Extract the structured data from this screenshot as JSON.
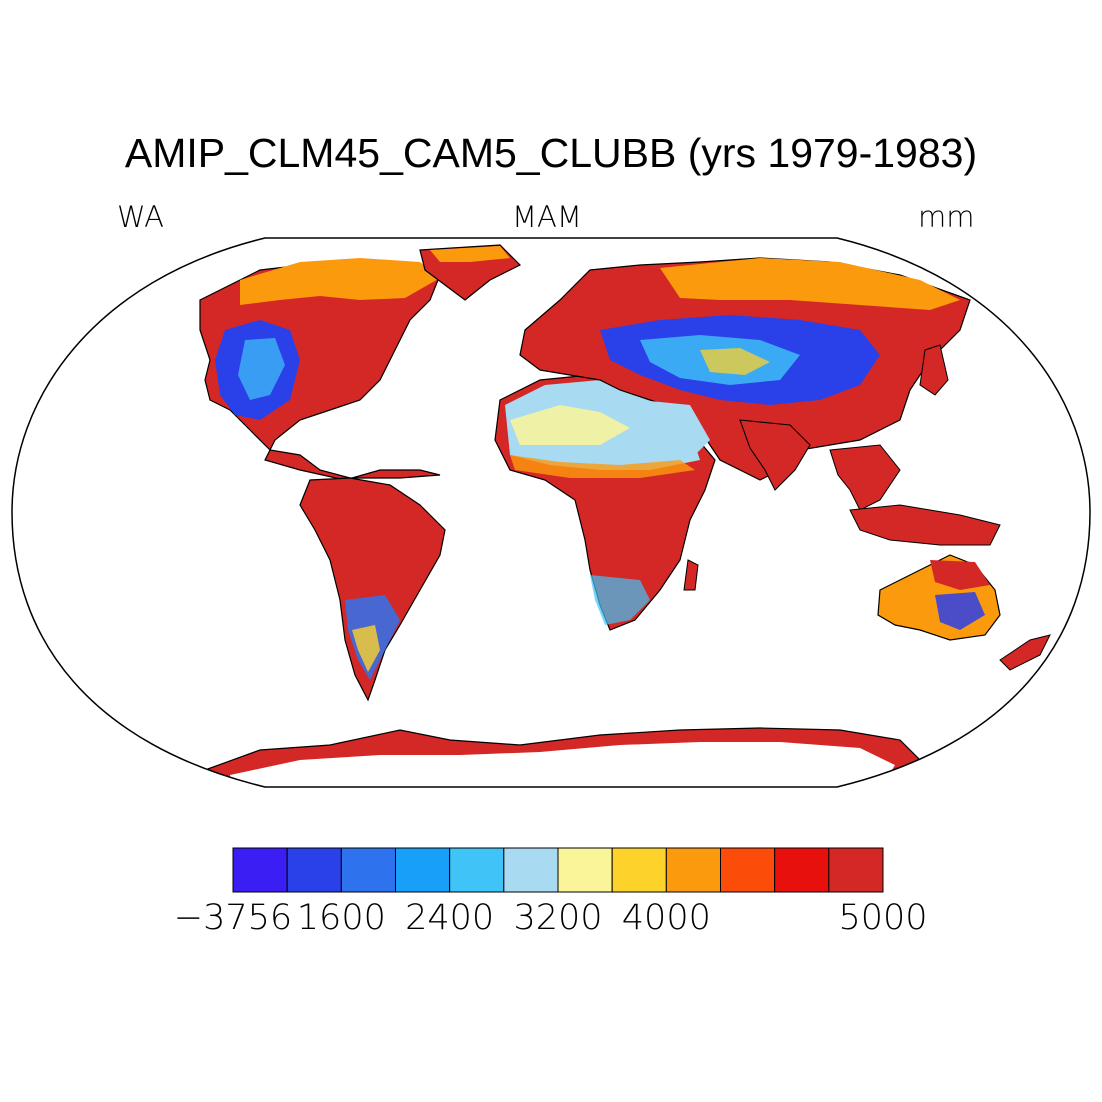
{
  "title": "AMIP_CLM45_CAM5_CLUBB (yrs 1979-1983)",
  "left_label": "WA",
  "center_label": "MAM",
  "right_label": "mm",
  "colorbar": {
    "colors": [
      "#3a1ef4",
      "#2a40e8",
      "#2f72ee",
      "#18a0f8",
      "#40c4f8",
      "#a8daf2",
      "#fbf59a",
      "#fdd22a",
      "#fc9a0e",
      "#fc4c0a",
      "#e8100c",
      "#d42826"
    ],
    "labels": [
      {
        "text": "−3756",
        "boundary": 0
      },
      {
        "text": "1600",
        "boundary": 2
      },
      {
        "text": "2400",
        "boundary": 4
      },
      {
        "text": "3200",
        "boundary": 6
      },
      {
        "text": "4000",
        "boundary": 8
      },
      {
        "text": "5000",
        "boundary": 12
      }
    ]
  },
  "map": {
    "projection": "Robinson",
    "land_fill": "#d42826",
    "ocean_fill": "#ffffff",
    "coastline_color": "#000000"
  }
}
